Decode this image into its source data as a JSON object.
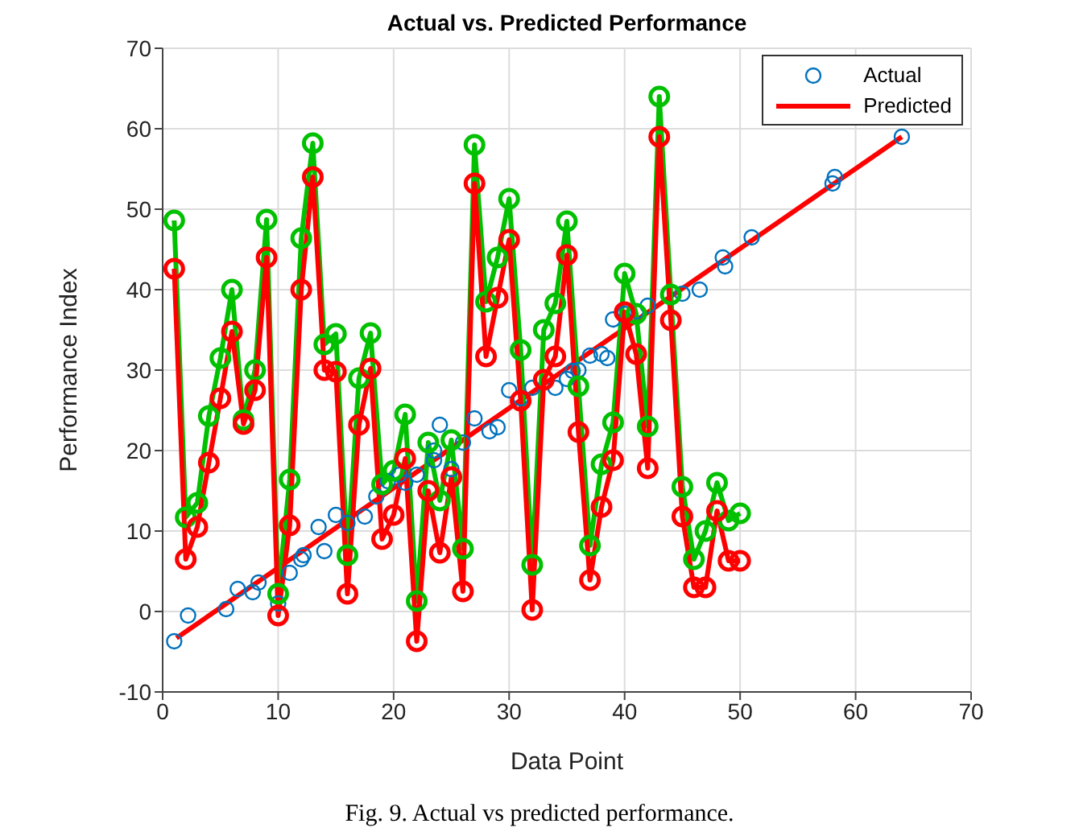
{
  "chart_data": {
    "type": "line",
    "title": "Actual vs. Predicted Performance",
    "xlabel": "Data Point",
    "ylabel": "Performance Index",
    "xlim": [
      0,
      70
    ],
    "xticks": [
      0,
      10,
      20,
      30,
      40,
      50,
      60,
      70
    ],
    "ylim": [
      -10,
      70
    ],
    "yticks": [
      -10,
      0,
      10,
      20,
      30,
      40,
      50,
      60,
      70
    ],
    "grid": true,
    "legend": "top right",
    "annotations": [
      "Fig. 9. Actual vs predicted performance."
    ],
    "series": [
      {
        "name": "Actual",
        "type": "scatter",
        "color": "#0072bd",
        "marker": "circle",
        "x": [
          1,
          2.2,
          5.5,
          6.5,
          7.8,
          8.3,
          10,
          11,
          12,
          12.2,
          13.5,
          14,
          15,
          16,
          17.5,
          18.5,
          19.5,
          20.5,
          21,
          22,
          23.5,
          23.5,
          24,
          25,
          26,
          27,
          28.3,
          29,
          30,
          31,
          32,
          34,
          35,
          35.5,
          36,
          37,
          38,
          38.5,
          39,
          40,
          41,
          42,
          45,
          46.5,
          48.5,
          48.7,
          51,
          58,
          58.2,
          64
        ],
        "values": [
          -3.7,
          -0.5,
          0.3,
          2.8,
          2.4,
          3.6,
          1,
          4.8,
          6.5,
          7,
          10.5,
          7.5,
          12,
          11,
          11.8,
          14.3,
          16.2,
          17,
          16,
          17,
          20,
          18.8,
          23.2,
          17.7,
          21,
          24,
          22.4,
          22.9,
          27.5,
          26.5,
          27.8,
          27.8,
          28.9,
          29.9,
          30,
          31.8,
          32,
          31.5,
          36.3,
          37,
          37.3,
          38,
          39.5,
          40,
          44,
          42.9,
          46.5,
          53.2,
          54,
          59
        ]
      },
      {
        "name": "Predicted",
        "color": "#ff0000",
        "marker": "none",
        "line_style": "solid",
        "x": [
          1.2,
          64
        ],
        "values": [
          -3.3,
          59
        ]
      },
      {
        "color": "#00c000",
        "marker": "circle",
        "line_style": "solid",
        "x": [
          1,
          2,
          3,
          4,
          5,
          6,
          7,
          8,
          9,
          10,
          11,
          12,
          13,
          14,
          15,
          16,
          17,
          18,
          19,
          20,
          21,
          22,
          23,
          24,
          25,
          26,
          27,
          28,
          29,
          30,
          31,
          32,
          33,
          34,
          35,
          36,
          37,
          38,
          39,
          40,
          41,
          42,
          43,
          44,
          45,
          46,
          47,
          48,
          49,
          50
        ],
        "values": [
          48.6,
          11.7,
          13.5,
          24.3,
          31.5,
          40,
          23.8,
          30,
          48.7,
          2.2,
          16.4,
          46.4,
          58.2,
          33.2,
          34.5,
          7,
          29,
          34.6,
          15.8,
          17.5,
          24.5,
          1.3,
          21,
          13.8,
          21.3,
          7.8,
          58,
          38.5,
          44,
          51.3,
          32.5,
          5.8,
          35,
          38.3,
          48.5,
          28,
          8.2,
          18.3,
          23.5,
          42,
          37,
          23,
          64,
          39.4,
          15.5,
          6.5,
          10,
          16,
          11.3,
          12.2
        ]
      },
      {
        "color": "#ff0000",
        "marker": "circle",
        "line_style": "solid",
        "x": [
          1,
          2,
          3,
          4,
          5,
          6,
          7,
          8,
          9,
          10,
          11,
          12,
          13,
          14,
          15,
          16,
          17,
          18,
          19,
          20,
          21,
          22,
          23,
          24,
          25,
          26,
          27,
          28,
          29,
          30,
          31,
          32,
          33,
          34,
          35,
          36,
          37,
          38,
          39,
          40,
          41,
          42,
          43,
          44,
          45,
          46,
          47,
          48,
          49,
          50
        ],
        "values": [
          42.6,
          6.5,
          10.5,
          18.5,
          26.5,
          34.8,
          23.3,
          27.5,
          44,
          -0.5,
          10.7,
          40,
          54,
          30,
          29.8,
          2.2,
          23.2,
          30.2,
          9,
          12,
          19,
          -3.7,
          15,
          7.3,
          16.7,
          2.5,
          53.2,
          31.7,
          39,
          46.2,
          26.2,
          0.2,
          28.8,
          31.7,
          44.3,
          22.3,
          3.9,
          13,
          18.8,
          37.2,
          32,
          17.8,
          59,
          36.2,
          11.8,
          3,
          3,
          12.5,
          6.3,
          6.3
        ]
      }
    ]
  }
}
